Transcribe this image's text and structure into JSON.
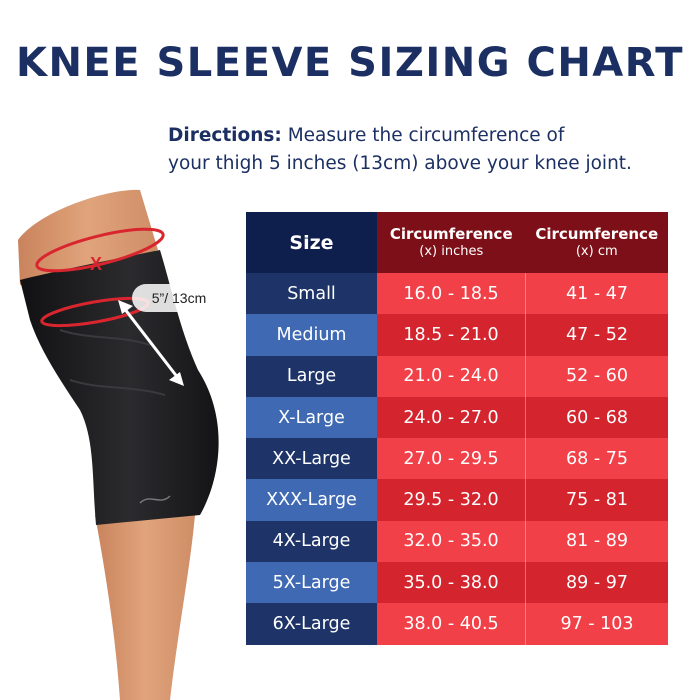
{
  "title": "KNEE SLEEVE SIZING CHART",
  "directions": {
    "label": "Directions:",
    "line1": "Measure the circumference of",
    "line2": "your thigh 5 inches (13cm) above your knee joint."
  },
  "illustration": {
    "x_marker": "X",
    "distance_label": "5”/ 13cm",
    "sleeve_color": "#1b1b1d",
    "skin_color": "#d99a73",
    "marker_color": "#d9262e"
  },
  "table": {
    "headers": {
      "size": "Size",
      "inches_title": "Circumference",
      "inches_sub": "(x) inches",
      "cm_title": "Circumference",
      "cm_sub": "(x) cm"
    },
    "rows": [
      {
        "size": "Small",
        "inches": "16.0 - 18.5",
        "cm": "41 - 47"
      },
      {
        "size": "Medium",
        "inches": "18.5 - 21.0",
        "cm": "47 - 52"
      },
      {
        "size": "Large",
        "inches": "21.0 - 24.0",
        "cm": "52 - 60"
      },
      {
        "size": "X-Large",
        "inches": "24.0 - 27.0",
        "cm": "60 - 68"
      },
      {
        "size": "XX-Large",
        "inches": "27.0 - 29.5",
        "cm": "68 - 75"
      },
      {
        "size": "XXX-Large",
        "inches": "29.5 - 32.0",
        "cm": "75 - 81"
      },
      {
        "size": "4X-Large",
        "inches": "32.0 - 35.0",
        "cm": "81 - 89"
      },
      {
        "size": "5X-Large",
        "inches": "35.0 - 38.0",
        "cm": "89 - 97"
      },
      {
        "size": "6X-Large",
        "inches": "38.0 - 40.5",
        "cm": "97 - 103"
      }
    ],
    "colors": {
      "size_header": "#0f1f4d",
      "size_dark": "#1e3468",
      "size_light": "#3f69b3",
      "circ_header": "#7d0f18",
      "circ_light": "#f24048",
      "circ_dark": "#d4252e"
    }
  }
}
